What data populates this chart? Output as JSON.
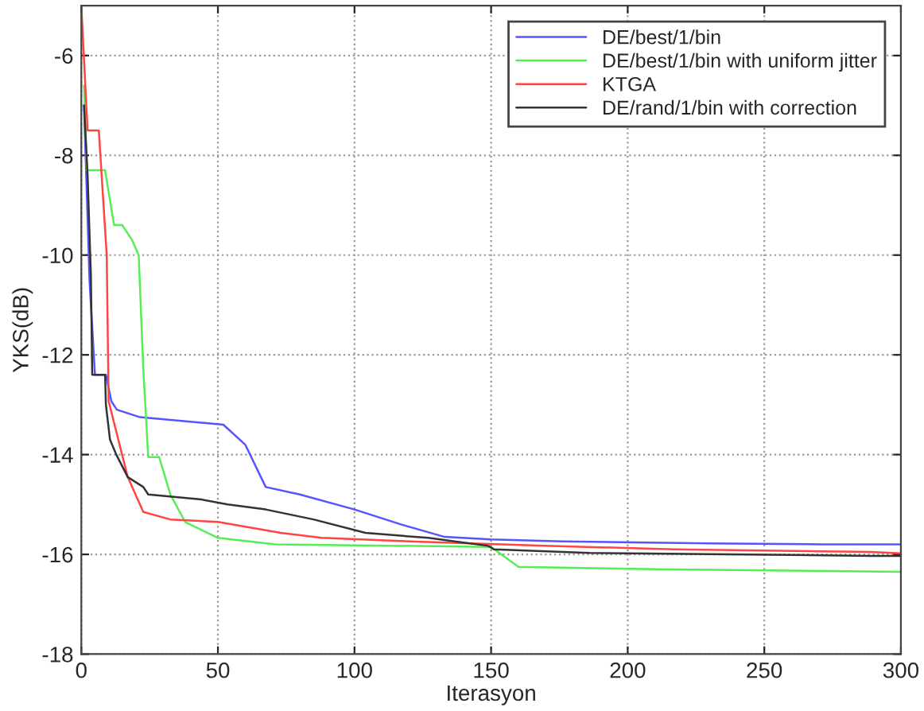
{
  "chart_data": {
    "type": "line",
    "xlabel": "Iterasyon",
    "ylabel": "YKS(dB)",
    "xlim": [
      0,
      300
    ],
    "ylim": [
      -18,
      -5
    ],
    "xticks": [
      0,
      50,
      100,
      150,
      200,
      250,
      300
    ],
    "yticks": [
      -18,
      -16,
      -14,
      -12,
      -10,
      -8,
      -6
    ],
    "grid": true,
    "legend": "top right",
    "line_style": "solid",
    "marker": "none",
    "series": [
      {
        "name": "DE/best/1/bin",
        "color": "#5555ff",
        "x": [
          1,
          3,
          5,
          9,
          11,
          13,
          21.5,
          52,
          60,
          67.5,
          80,
          100,
          117,
          133,
          150,
          176,
          230,
          271,
          300
        ],
        "values": [
          -7.0,
          -10.5,
          -12.4,
          -12.4,
          -12.93,
          -13.1,
          -13.25,
          -13.4,
          -13.8,
          -14.65,
          -14.8,
          -15.1,
          -15.4,
          -15.65,
          -15.7,
          -15.74,
          -15.78,
          -15.8,
          -15.8
        ]
      },
      {
        "name": "DE/best/1/bin with uniform jitter",
        "color": "#55ee55",
        "x": [
          1,
          2,
          8.7,
          12,
          15,
          18.6,
          21,
          22.7,
          24.5,
          28.5,
          32.6,
          38,
          50,
          71,
          150,
          160,
          211,
          267,
          300
        ],
        "values": [
          -6.6,
          -8.3,
          -8.3,
          -9.4,
          -9.4,
          -9.7,
          -10.0,
          -12.3,
          -14.05,
          -14.05,
          -14.8,
          -15.35,
          -15.67,
          -15.8,
          -15.85,
          -16.25,
          -16.3,
          -16.33,
          -16.35
        ]
      },
      {
        "name": "KTGA",
        "color": "#ff4444",
        "x": [
          0,
          2.3,
          6.4,
          9.3,
          10,
          17,
          22.7,
          32.6,
          50,
          73,
          88,
          120,
          172,
          217,
          289,
          300
        ],
        "values": [
          -5.0,
          -7.5,
          -7.5,
          -10.0,
          -12.93,
          -14.45,
          -15.15,
          -15.3,
          -15.35,
          -15.57,
          -15.67,
          -15.74,
          -15.83,
          -15.9,
          -15.95,
          -15.98
        ]
      },
      {
        "name": "DE/rand/1/bin with correction",
        "color": "#333333",
        "x": [
          1,
          2.3,
          3.5,
          4,
          8.7,
          9,
          10.5,
          12.8,
          17,
          22.7,
          24.5,
          44,
          53.6,
          67.5,
          85,
          104,
          127,
          149,
          151,
          186,
          289,
          300
        ],
        "values": [
          -7.0,
          -8.4,
          -10.4,
          -12.4,
          -12.4,
          -13.0,
          -13.7,
          -14.0,
          -14.45,
          -14.65,
          -14.8,
          -14.9,
          -15.0,
          -15.1,
          -15.3,
          -15.57,
          -15.67,
          -15.83,
          -15.9,
          -15.97,
          -16.03,
          -16.03
        ]
      }
    ]
  }
}
